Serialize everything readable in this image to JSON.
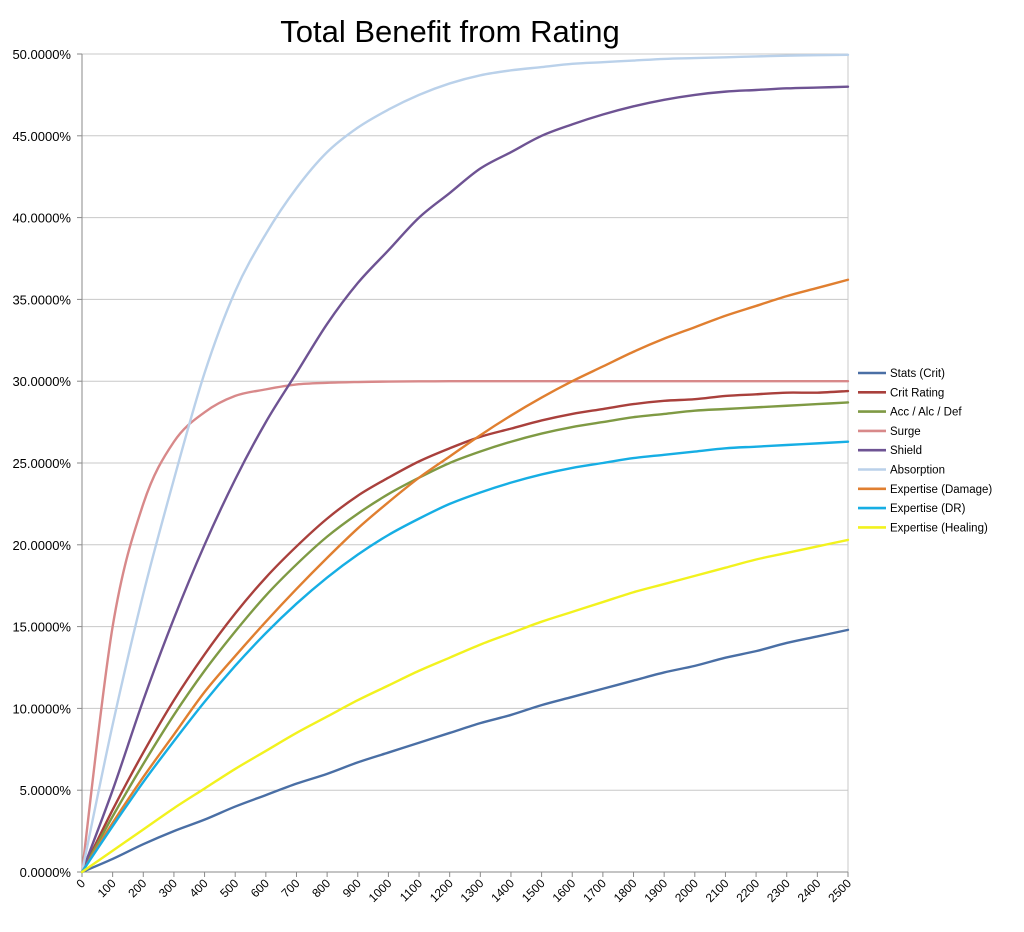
{
  "chart_data": {
    "type": "line",
    "title": "Total Benefit from Rating",
    "xlabel": "",
    "ylabel": "",
    "xlim": [
      0,
      2500
    ],
    "ylim": [
      0,
      50
    ],
    "y_format": "percent_4dp",
    "grid": true,
    "legend_position": "right",
    "x_tick_labels": [
      "0",
      "100",
      "200",
      "300",
      "400",
      "500",
      "600",
      "700",
      "800",
      "900",
      "1000",
      "1100",
      "1200",
      "1300",
      "1400",
      "1500",
      "1600",
      "1700",
      "1800",
      "1900",
      "2000",
      "2100",
      "2200",
      "2300",
      "2400",
      "2500"
    ],
    "y_tick_labels": [
      "0.0000%",
      "5.0000%",
      "10.0000%",
      "15.0000%",
      "20.0000%",
      "25.0000%",
      "30.0000%",
      "35.0000%",
      "40.0000%",
      "45.0000%",
      "50.0000%"
    ],
    "x": [
      0,
      100,
      200,
      300,
      400,
      500,
      600,
      700,
      800,
      900,
      1000,
      1100,
      1200,
      1300,
      1400,
      1500,
      1600,
      1700,
      1800,
      1900,
      2000,
      2100,
      2200,
      2300,
      2400,
      2500
    ],
    "series": [
      {
        "name": "Stats (Crit)",
        "color": "#4a6fa5",
        "values": [
          0,
          0.8,
          1.7,
          2.5,
          3.2,
          4.0,
          4.7,
          5.4,
          6.0,
          6.7,
          7.3,
          7.9,
          8.5,
          9.1,
          9.6,
          10.2,
          10.7,
          11.2,
          11.7,
          12.2,
          12.6,
          13.1,
          13.5,
          14.0,
          14.4,
          14.8
        ]
      },
      {
        "name": "Crit Rating",
        "color": "#a9403c",
        "values": [
          0,
          3.8,
          7.3,
          10.5,
          13.3,
          15.8,
          18.0,
          19.9,
          21.6,
          23.0,
          24.1,
          25.1,
          25.9,
          26.6,
          27.1,
          27.6,
          28.0,
          28.3,
          28.6,
          28.8,
          28.9,
          29.1,
          29.2,
          29.3,
          29.3,
          29.4
        ]
      },
      {
        "name": "Acc / Alc / Def",
        "color": "#7f9a44",
        "values": [
          0,
          3.4,
          6.6,
          9.6,
          12.3,
          14.7,
          16.9,
          18.8,
          20.5,
          21.9,
          23.1,
          24.1,
          25.0,
          25.7,
          26.3,
          26.8,
          27.2,
          27.5,
          27.8,
          28.0,
          28.2,
          28.3,
          28.4,
          28.5,
          28.6,
          28.7
        ]
      },
      {
        "name": "Surge",
        "color": "#d8898a",
        "values": [
          0,
          15.0,
          22.5,
          26.3,
          28.1,
          29.1,
          29.5,
          29.8,
          29.9,
          29.95,
          29.98,
          29.99,
          30.0,
          30.0,
          30.0,
          30.0,
          30.0,
          30.0,
          30.0,
          30.0,
          30.0,
          30.0,
          30.0,
          30.0,
          30.0,
          30.0
        ]
      },
      {
        "name": "Shield",
        "color": "#6e5393",
        "values": [
          0,
          5.0,
          10.5,
          15.5,
          20.0,
          24.0,
          27.5,
          30.5,
          33.5,
          36.0,
          38.0,
          40.0,
          41.5,
          43.0,
          44.0,
          45.0,
          45.7,
          46.3,
          46.8,
          47.2,
          47.5,
          47.7,
          47.8,
          47.9,
          47.95,
          48.0
        ]
      },
      {
        "name": "Absorption",
        "color": "#bad1ea",
        "values": [
          0,
          9.0,
          17.0,
          24.0,
          30.5,
          35.5,
          39.0,
          41.8,
          44.0,
          45.5,
          46.6,
          47.5,
          48.2,
          48.7,
          49.0,
          49.2,
          49.4,
          49.5,
          49.6,
          49.7,
          49.75,
          49.8,
          49.85,
          49.9,
          49.93,
          49.95
        ]
      },
      {
        "name": "Expertise (Damage)",
        "color": "#e07f30",
        "values": [
          0,
          3.0,
          5.8,
          8.4,
          11.0,
          13.2,
          15.3,
          17.3,
          19.2,
          21.0,
          22.6,
          24.1,
          25.4,
          26.7,
          27.9,
          29.0,
          30.0,
          30.9,
          31.8,
          32.6,
          33.3,
          34.0,
          34.6,
          35.2,
          35.7,
          36.2
        ]
      },
      {
        "name": "Expertise (DR)",
        "color": "#16aee4",
        "values": [
          0,
          2.8,
          5.5,
          8.0,
          10.4,
          12.6,
          14.6,
          16.4,
          18.0,
          19.4,
          20.6,
          21.6,
          22.5,
          23.2,
          23.8,
          24.3,
          24.7,
          25.0,
          25.3,
          25.5,
          25.7,
          25.9,
          26.0,
          26.1,
          26.2,
          26.3
        ]
      },
      {
        "name": "Expertise (Healing)",
        "color": "#f2f21e",
        "values": [
          0,
          1.3,
          2.6,
          3.9,
          5.1,
          6.3,
          7.4,
          8.5,
          9.5,
          10.5,
          11.4,
          12.3,
          13.1,
          13.9,
          14.6,
          15.3,
          15.9,
          16.5,
          17.1,
          17.6,
          18.1,
          18.6,
          19.1,
          19.5,
          19.9,
          20.3
        ]
      }
    ]
  }
}
